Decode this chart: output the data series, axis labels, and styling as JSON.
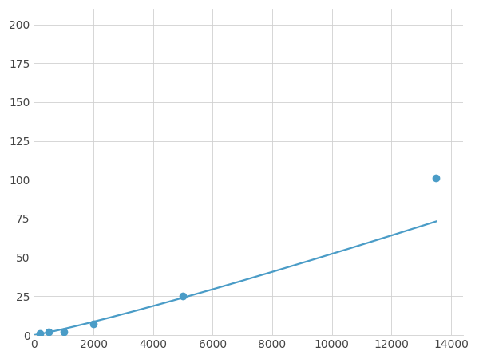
{
  "x_points": [
    200,
    500,
    1000,
    2000,
    5000,
    13500
  ],
  "y_points": [
    1,
    2,
    2,
    7,
    25,
    101
  ],
  "marked_indices": [
    0,
    1,
    2,
    3,
    4,
    5
  ],
  "line_color": "#4a9cc7",
  "marker_color": "#4a9cc7",
  "marker_size": 6,
  "linewidth": 1.6,
  "xlim": [
    0,
    14400
  ],
  "ylim": [
    0,
    210
  ],
  "xticks": [
    0,
    2000,
    4000,
    6000,
    8000,
    10000,
    12000,
    14000
  ],
  "yticks": [
    0,
    25,
    50,
    75,
    100,
    125,
    150,
    175,
    200
  ],
  "grid_color": "#d0d0d0",
  "grid_linewidth": 0.6,
  "background_color": "#ffffff",
  "figure_bg": "#ffffff",
  "tick_fontsize": 10,
  "tick_color": "#444444"
}
